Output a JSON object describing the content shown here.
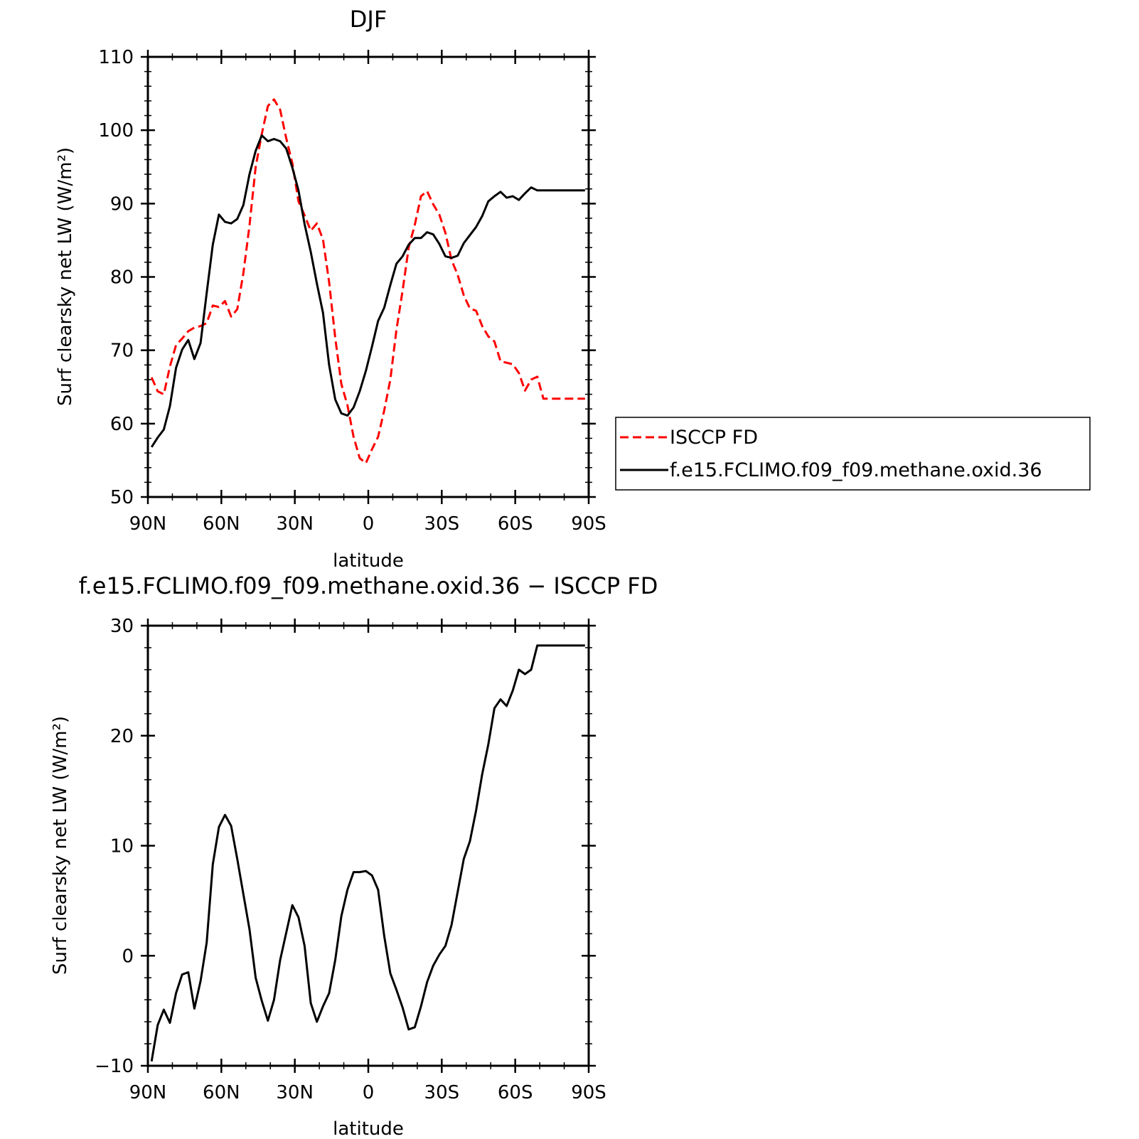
{
  "chart_data": [
    {
      "type": "line",
      "title": "DJF",
      "xlabel": "latitude",
      "ylabel": "Surf clearsky net LW (W/m²)",
      "x_domain": [
        90,
        -90
      ],
      "x_ticks": [
        90,
        60,
        30,
        0,
        -30,
        -60,
        -90
      ],
      "x_tick_labels": [
        "90N",
        "60N",
        "30N",
        "0",
        "30S",
        "60S",
        "90S"
      ],
      "ylim": [
        50,
        110
      ],
      "y_ticks": [
        50,
        60,
        70,
        80,
        90,
        100,
        110
      ],
      "y_tick_labels": [
        "50",
        "60",
        "70",
        "80",
        "90",
        "100",
        "110"
      ],
      "legend_position": "right",
      "series": [
        {
          "name": "ISCCP FD",
          "color": "#ff0000",
          "style": "dashed",
          "x": [
            88.5,
            86,
            83.5,
            81,
            78.5,
            76,
            73.5,
            71,
            68.5,
            66,
            63.5,
            61,
            58.5,
            56,
            53.5,
            51,
            48.5,
            46,
            43.5,
            41,
            38.5,
            36,
            33.5,
            31,
            28.5,
            26,
            23.5,
            21,
            18.5,
            16,
            13.5,
            11,
            8.5,
            6,
            3.5,
            1,
            -1.5,
            -4,
            -6.5,
            -9,
            -11.5,
            -14,
            -16.5,
            -19,
            -21.5,
            -24,
            -26.5,
            -29,
            -31.5,
            -34,
            -36.5,
            -39,
            -41.5,
            -44,
            -46.5,
            -49,
            -51.5,
            -54,
            -56.5,
            -59,
            -61.5,
            -64,
            -66.5,
            -69,
            -71.5,
            -74,
            -76.5,
            -79,
            -81.5,
            -84,
            -86.5,
            -88.5
          ],
          "y": [
            66.3,
            64.4,
            64.0,
            67.8,
            70.7,
            71.6,
            72.6,
            73.1,
            73.3,
            73.7,
            76.1,
            75.9,
            76.7,
            74.6,
            75.6,
            80.5,
            87.0,
            95.0,
            99.5,
            103.3,
            104.2,
            102.8,
            98.9,
            95.5,
            90.3,
            88.4,
            86.3,
            87.3,
            85.1,
            79.3,
            71.7,
            65.4,
            62.5,
            58.2,
            55.3,
            54.6,
            56.5,
            58.2,
            61.8,
            66.0,
            72.8,
            78.1,
            84.0,
            87.1,
            91.0,
            91.7,
            89.9,
            88.5,
            86.0,
            82.3,
            80.3,
            77.5,
            75.7,
            75.4,
            73.3,
            71.9,
            71.2,
            68.5,
            68.3,
            68.1,
            66.9,
            64.5,
            66.0,
            66.4,
            63.4,
            63.4,
            63.4,
            63.4,
            63.4,
            63.4,
            63.4,
            63.4
          ]
        },
        {
          "name": "f.e15.FCLIMO.f09_f09.methane.oxid.36",
          "color": "#000000",
          "style": "solid",
          "x": [
            88.5,
            86,
            83.5,
            81,
            78.5,
            76,
            73.5,
            71,
            68.5,
            66,
            63.5,
            61,
            58.5,
            56,
            53.5,
            51,
            48.5,
            46,
            43.5,
            41,
            38.5,
            36,
            33.5,
            31,
            28.5,
            26,
            23.5,
            21,
            18.5,
            16,
            13.5,
            11,
            8.5,
            6,
            3.5,
            1,
            -1.5,
            -4,
            -6.5,
            -9,
            -11.5,
            -14,
            -16.5,
            -19,
            -21.5,
            -24,
            -26.5,
            -29,
            -31.5,
            -34,
            -36.5,
            -39,
            -41.5,
            -44,
            -46.5,
            -49,
            -51.5,
            -54,
            -56.5,
            -59,
            -61.5,
            -64,
            -66.5,
            -69,
            -71.5,
            -74,
            -76.5,
            -79,
            -81.5,
            -84,
            -86.5,
            -88.5
          ],
          "y": [
            56.8,
            58.1,
            59.2,
            62.4,
            67.6,
            70.1,
            71.4,
            68.8,
            71.0,
            77.8,
            84.4,
            88.5,
            87.5,
            87.3,
            87.9,
            89.8,
            94.0,
            97.2,
            99.3,
            98.5,
            98.8,
            98.5,
            97.5,
            94.9,
            91.8,
            87.2,
            83.4,
            79.1,
            75.1,
            68.0,
            63.3,
            61.4,
            61.1,
            62.2,
            64.4,
            67.2,
            70.5,
            74.0,
            75.8,
            78.9,
            81.8,
            82.8,
            84.4,
            85.3,
            85.3,
            86.1,
            85.8,
            84.5,
            82.8,
            82.6,
            82.9,
            84.6,
            85.7,
            86.8,
            88.3,
            90.3,
            91.0,
            91.6,
            90.8,
            91.0,
            90.5,
            91.4,
            92.2,
            91.8,
            91.8,
            91.8,
            91.8,
            91.8,
            91.8,
            91.8,
            91.8,
            91.8
          ]
        }
      ]
    },
    {
      "type": "line",
      "title": "f.e15.FCLIMO.f09_f09.methane.oxid.36 − ISCCP FD",
      "xlabel": "latitude",
      "ylabel": "Surf clearsky net LW (W/m²)",
      "x_domain": [
        90,
        -90
      ],
      "x_ticks": [
        90,
        60,
        30,
        0,
        -30,
        -60,
        -90
      ],
      "x_tick_labels": [
        "90N",
        "60N",
        "30N",
        "0",
        "30S",
        "60S",
        "90S"
      ],
      "ylim": [
        -10,
        30
      ],
      "y_ticks": [
        -10,
        0,
        10,
        20,
        30
      ],
      "y_tick_labels": [
        "−10",
        "0",
        "10",
        "20",
        "30"
      ],
      "series": [
        {
          "color": "#000000",
          "style": "solid",
          "x": [
            88.5,
            86,
            83.5,
            81,
            78.5,
            76,
            73.5,
            71,
            68.5,
            66,
            63.5,
            61,
            58.5,
            56,
            53.5,
            51,
            48.5,
            46,
            43.5,
            41,
            38.5,
            36,
            33.5,
            31,
            28.5,
            26,
            23.5,
            21,
            18.5,
            16,
            13.5,
            11,
            8.5,
            6,
            3.5,
            1,
            -1.5,
            -4,
            -6.5,
            -9,
            -11.5,
            -14,
            -16.5,
            -19,
            -21.5,
            -24,
            -26.5,
            -29,
            -31.5,
            -34,
            -36.5,
            -39,
            -41.5,
            -44,
            -46.5,
            -49,
            -51.5,
            -54,
            -56.5,
            -59,
            -61.5,
            -64,
            -66.5,
            -69,
            -71.5,
            -74,
            -76.5,
            -79,
            -81.5,
            -84,
            -86.5,
            -88.5
          ],
          "y": [
            -9.6,
            -6.3,
            -4.9,
            -6.1,
            -3.4,
            -1.7,
            -1.5,
            -4.8,
            -2.3,
            1.2,
            8.3,
            11.7,
            12.8,
            11.8,
            8.8,
            5.6,
            2.4,
            -2.0,
            -4.1,
            -5.9,
            -4.0,
            -0.4,
            2.1,
            4.6,
            3.5,
            0.9,
            -4.3,
            -6.0,
            -4.6,
            -3.4,
            -0.4,
            3.6,
            6.0,
            7.6,
            7.6,
            7.7,
            7.3,
            6.0,
            1.8,
            -1.6,
            -3.1,
            -4.7,
            -6.7,
            -6.5,
            -4.6,
            -2.4,
            -0.9,
            0.1,
            0.9,
            2.8,
            5.8,
            8.8,
            10.4,
            13.2,
            16.5,
            19.2,
            22.5,
            23.3,
            22.7,
            24.1,
            26.0,
            25.6,
            26.0,
            28.2,
            28.2,
            28.2,
            28.2,
            28.2,
            28.2,
            28.2,
            28.2,
            28.2
          ]
        }
      ]
    }
  ]
}
